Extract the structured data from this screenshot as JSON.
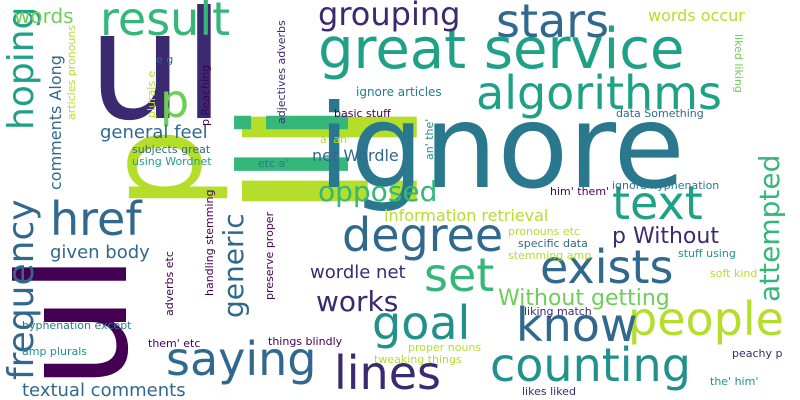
{
  "palette": {
    "background": "#ffffff",
    "dark_purple": "#440154",
    "indigo": "#3b2a6f",
    "blue": "#31688e",
    "teal_blue": "#2a788e",
    "teal": "#21918c",
    "green_teal": "#1fa187",
    "green": "#35b779",
    "light_green": "#6ece58",
    "yellow_green": "#b5de2b",
    "pale_yellow": "#d6e53a"
  },
  "words": [
    {
      "text": "li",
      "color": "#b5de2b"
    },
    {
      "text": "ul",
      "color": "#440154"
    },
    {
      "text": "p",
      "color": "#b5de2b"
    },
    {
      "text": "ul",
      "color": "#3b2a6f"
    },
    {
      "text": "li",
      "color": "#35b779"
    },
    {
      "text": "ignore",
      "color": "#2a788e"
    },
    {
      "text": "great service",
      "color": "#1fa187"
    },
    {
      "text": "p",
      "color": "#6ece58"
    },
    {
      "text": "algorithms",
      "color": "#1fa187"
    },
    {
      "text": "result",
      "color": "#35b779"
    },
    {
      "text": "grouping",
      "color": "#3b2a6f"
    },
    {
      "text": "stars",
      "color": "#31688e"
    },
    {
      "text": "words occur",
      "color": "#b5de2b"
    },
    {
      "text": "hoping",
      "color": "#1fa187"
    },
    {
      "text": "frequency",
      "color": "#31688e"
    },
    {
      "text": "href",
      "color": "#31688e"
    },
    {
      "text": "degree",
      "color": "#31688e"
    },
    {
      "text": "opposed",
      "color": "#35b779"
    },
    {
      "text": "text",
      "color": "#1fa187"
    },
    {
      "text": "attempted",
      "color": "#35b779"
    },
    {
      "text": "exists",
      "color": "#31688e"
    },
    {
      "text": "set",
      "color": "#35b779"
    },
    {
      "text": "people",
      "color": "#b5de2b"
    },
    {
      "text": "know",
      "color": "#31688e"
    },
    {
      "text": "goal",
      "color": "#21918c"
    },
    {
      "text": "works",
      "color": "#3b2a6f"
    },
    {
      "text": "saying",
      "color": "#31688e"
    },
    {
      "text": "lines",
      "color": "#3b2a6f"
    },
    {
      "text": "counting",
      "color": "#21918c"
    },
    {
      "text": "generic",
      "color": "#31688e"
    },
    {
      "text": "general feel",
      "color": "#31688e"
    },
    {
      "text": "comments Along",
      "color": "#31688e"
    },
    {
      "text": "given body",
      "color": "#31688e"
    },
    {
      "text": "textual comments",
      "color": "#31688e"
    },
    {
      "text": "p Without",
      "color": "#3b2a6f"
    },
    {
      "text": "Without getting",
      "color": "#6ece58"
    },
    {
      "text": "wordle net",
      "color": "#3b2a6f"
    },
    {
      "text": "net Wordle",
      "color": "#31688e"
    },
    {
      "text": "information retrieval",
      "color": "#b5de2b"
    },
    {
      "text": "ignore articles",
      "color": "#2a788e"
    },
    {
      "text": "basic stuff",
      "color": "#440154"
    },
    {
      "text": "data Something",
      "color": "#31688e"
    },
    {
      "text": "liked liking",
      "color": "#6ece58"
    },
    {
      "text": "ignore hyphenation",
      "color": "#2a788e"
    },
    {
      "text": "him' them'",
      "color": "#440154"
    },
    {
      "text": "an' the'",
      "color": "#21918c"
    },
    {
      "text": "a' an'",
      "color": "#b5de2b"
    },
    {
      "text": "etc a'",
      "color": "#2a788e"
    },
    {
      "text": "p Reaching",
      "color": "#440154"
    },
    {
      "text": "articles pronouns",
      "color": "#b5de2b"
    },
    {
      "text": "adjectives adverbs",
      "color": "#3b2a6f"
    },
    {
      "text": "e g",
      "color": "#31688e"
    },
    {
      "text": "plurals e",
      "color": "#b5de2b"
    },
    {
      "text": "subjects great",
      "color": "#31688e"
    },
    {
      "text": "using Wordnet",
      "color": "#1fa187"
    },
    {
      "text": "handling stemming",
      "color": "#440154"
    },
    {
      "text": "preserve proper",
      "color": "#440154"
    },
    {
      "text": "adverbs etc",
      "color": "#440154"
    },
    {
      "text": "them' etc",
      "color": "#440154"
    },
    {
      "text": "things blindly",
      "color": "#440154"
    },
    {
      "text": "pronouns etc",
      "color": "#b5de2b"
    },
    {
      "text": "specific data",
      "color": "#31688e"
    },
    {
      "text": "stemming amp",
      "color": "#b5de2b"
    },
    {
      "text": "stuff using",
      "color": "#21918c"
    },
    {
      "text": "soft kind",
      "color": "#b5de2b"
    },
    {
      "text": "liking match",
      "color": "#3b2a6f"
    },
    {
      "text": "proper nouns",
      "color": "#b5de2b"
    },
    {
      "text": "tweaking things",
      "color": "#b5de2b"
    },
    {
      "text": "peachy p",
      "color": "#3b2a6f"
    },
    {
      "text": "the' him'",
      "color": "#21918c"
    },
    {
      "text": "likes liked",
      "color": "#3b2a6f"
    },
    {
      "text": "hyphenation except",
      "color": "#2a788e"
    },
    {
      "text": "amp plurals",
      "color": "#21918c"
    },
    {
      "text": "words",
      "color": "#6ece58"
    }
  ]
}
